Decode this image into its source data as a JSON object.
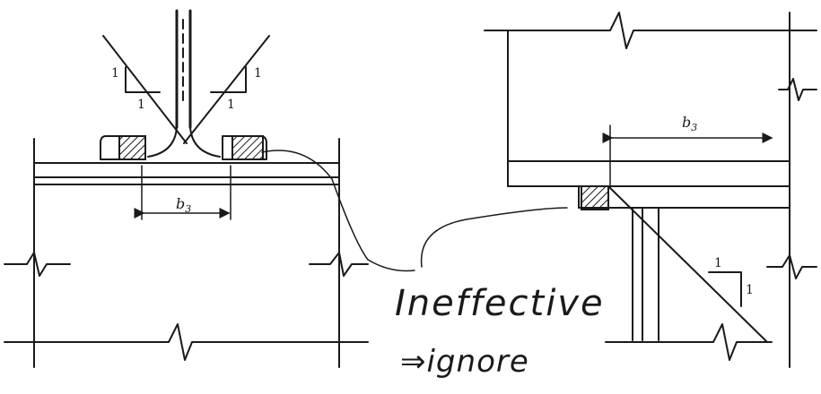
{
  "diagram": {
    "left_detail": {
      "slope_left": {
        "rise": "1",
        "run": "1"
      },
      "slope_right": {
        "rise": "1",
        "run": "1"
      },
      "dimension_label": "b_3",
      "dimension_sub": "3"
    },
    "right_detail": {
      "dimension_label": "b_3",
      "dimension_sub": "3",
      "slope": {
        "rise": "1",
        "run": "1"
      }
    },
    "annotation": {
      "line1": "Ineffective",
      "line2": "⇒ignore"
    }
  }
}
